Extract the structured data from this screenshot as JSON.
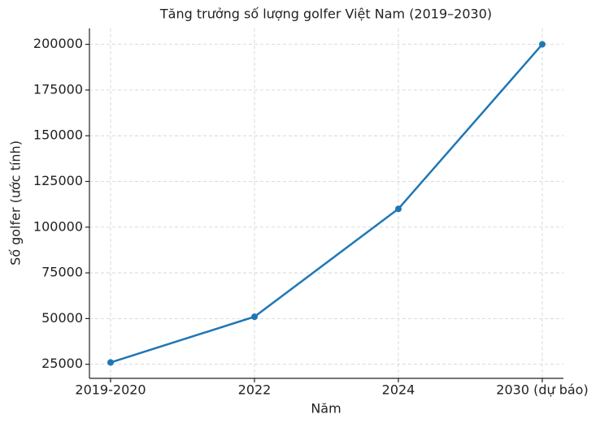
{
  "chart_data": {
    "type": "line",
    "title": "Tăng trưởng số lượng golfer Việt Nam (2019–2030)",
    "x_label": "Năm",
    "y_label": "Số golfer (ước tính)",
    "categories": [
      "2019-2020",
      "2022",
      "2024",
      "2030 (dự báo)"
    ],
    "series": [
      {
        "name": "Số golfer",
        "color": "#1f77b4",
        "values": [
          26000,
          51000,
          110000,
          200000
        ]
      }
    ],
    "ylim": [
      17300,
      208700
    ],
    "yticks": [
      25000,
      50000,
      75000,
      100000,
      125000,
      150000,
      175000,
      200000
    ],
    "grid": true
  }
}
